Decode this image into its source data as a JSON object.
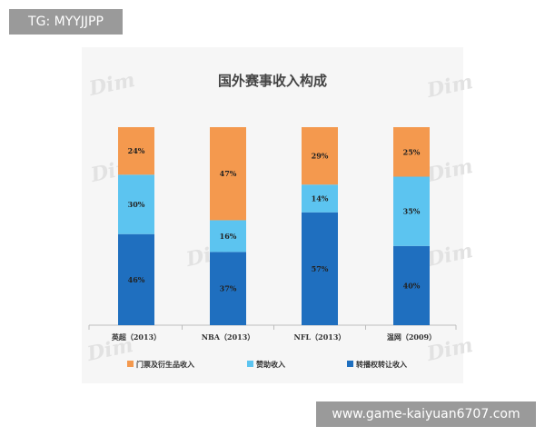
{
  "badges": {
    "tg": "TG: MYYJJPP",
    "url": "www.game-kaiyuan6707.com"
  },
  "watermark_text": "Dim",
  "chart_data": {
    "type": "bar",
    "stacked": true,
    "percent_stacked": true,
    "title": "国外赛事收入构成",
    "xlabel": "",
    "ylabel": "",
    "ylim": [
      0,
      100
    ],
    "grid": false,
    "legend_position": "bottom",
    "categories": [
      "英超（2013）",
      "NBA（2013）",
      "NFL（2013）",
      "温网（2009）"
    ],
    "series": [
      {
        "name": "转播权转让收入",
        "color": "#1f6fbf",
        "values": [
          46,
          37,
          57,
          40
        ],
        "labels": [
          "46%",
          "37%",
          "57%",
          "40%"
        ]
      },
      {
        "name": "赞助收入",
        "color": "#5cc4f0",
        "values": [
          30,
          16,
          14,
          35
        ],
        "labels": [
          "30%",
          "16%",
          "14%",
          "35%"
        ]
      },
      {
        "name": "门票及衍生品收入",
        "color": "#f4994e",
        "values": [
          24,
          47,
          29,
          25
        ],
        "labels": [
          "24%",
          "47%",
          "29%",
          "25%"
        ]
      }
    ],
    "legend_order": [
      2,
      1,
      0
    ]
  }
}
